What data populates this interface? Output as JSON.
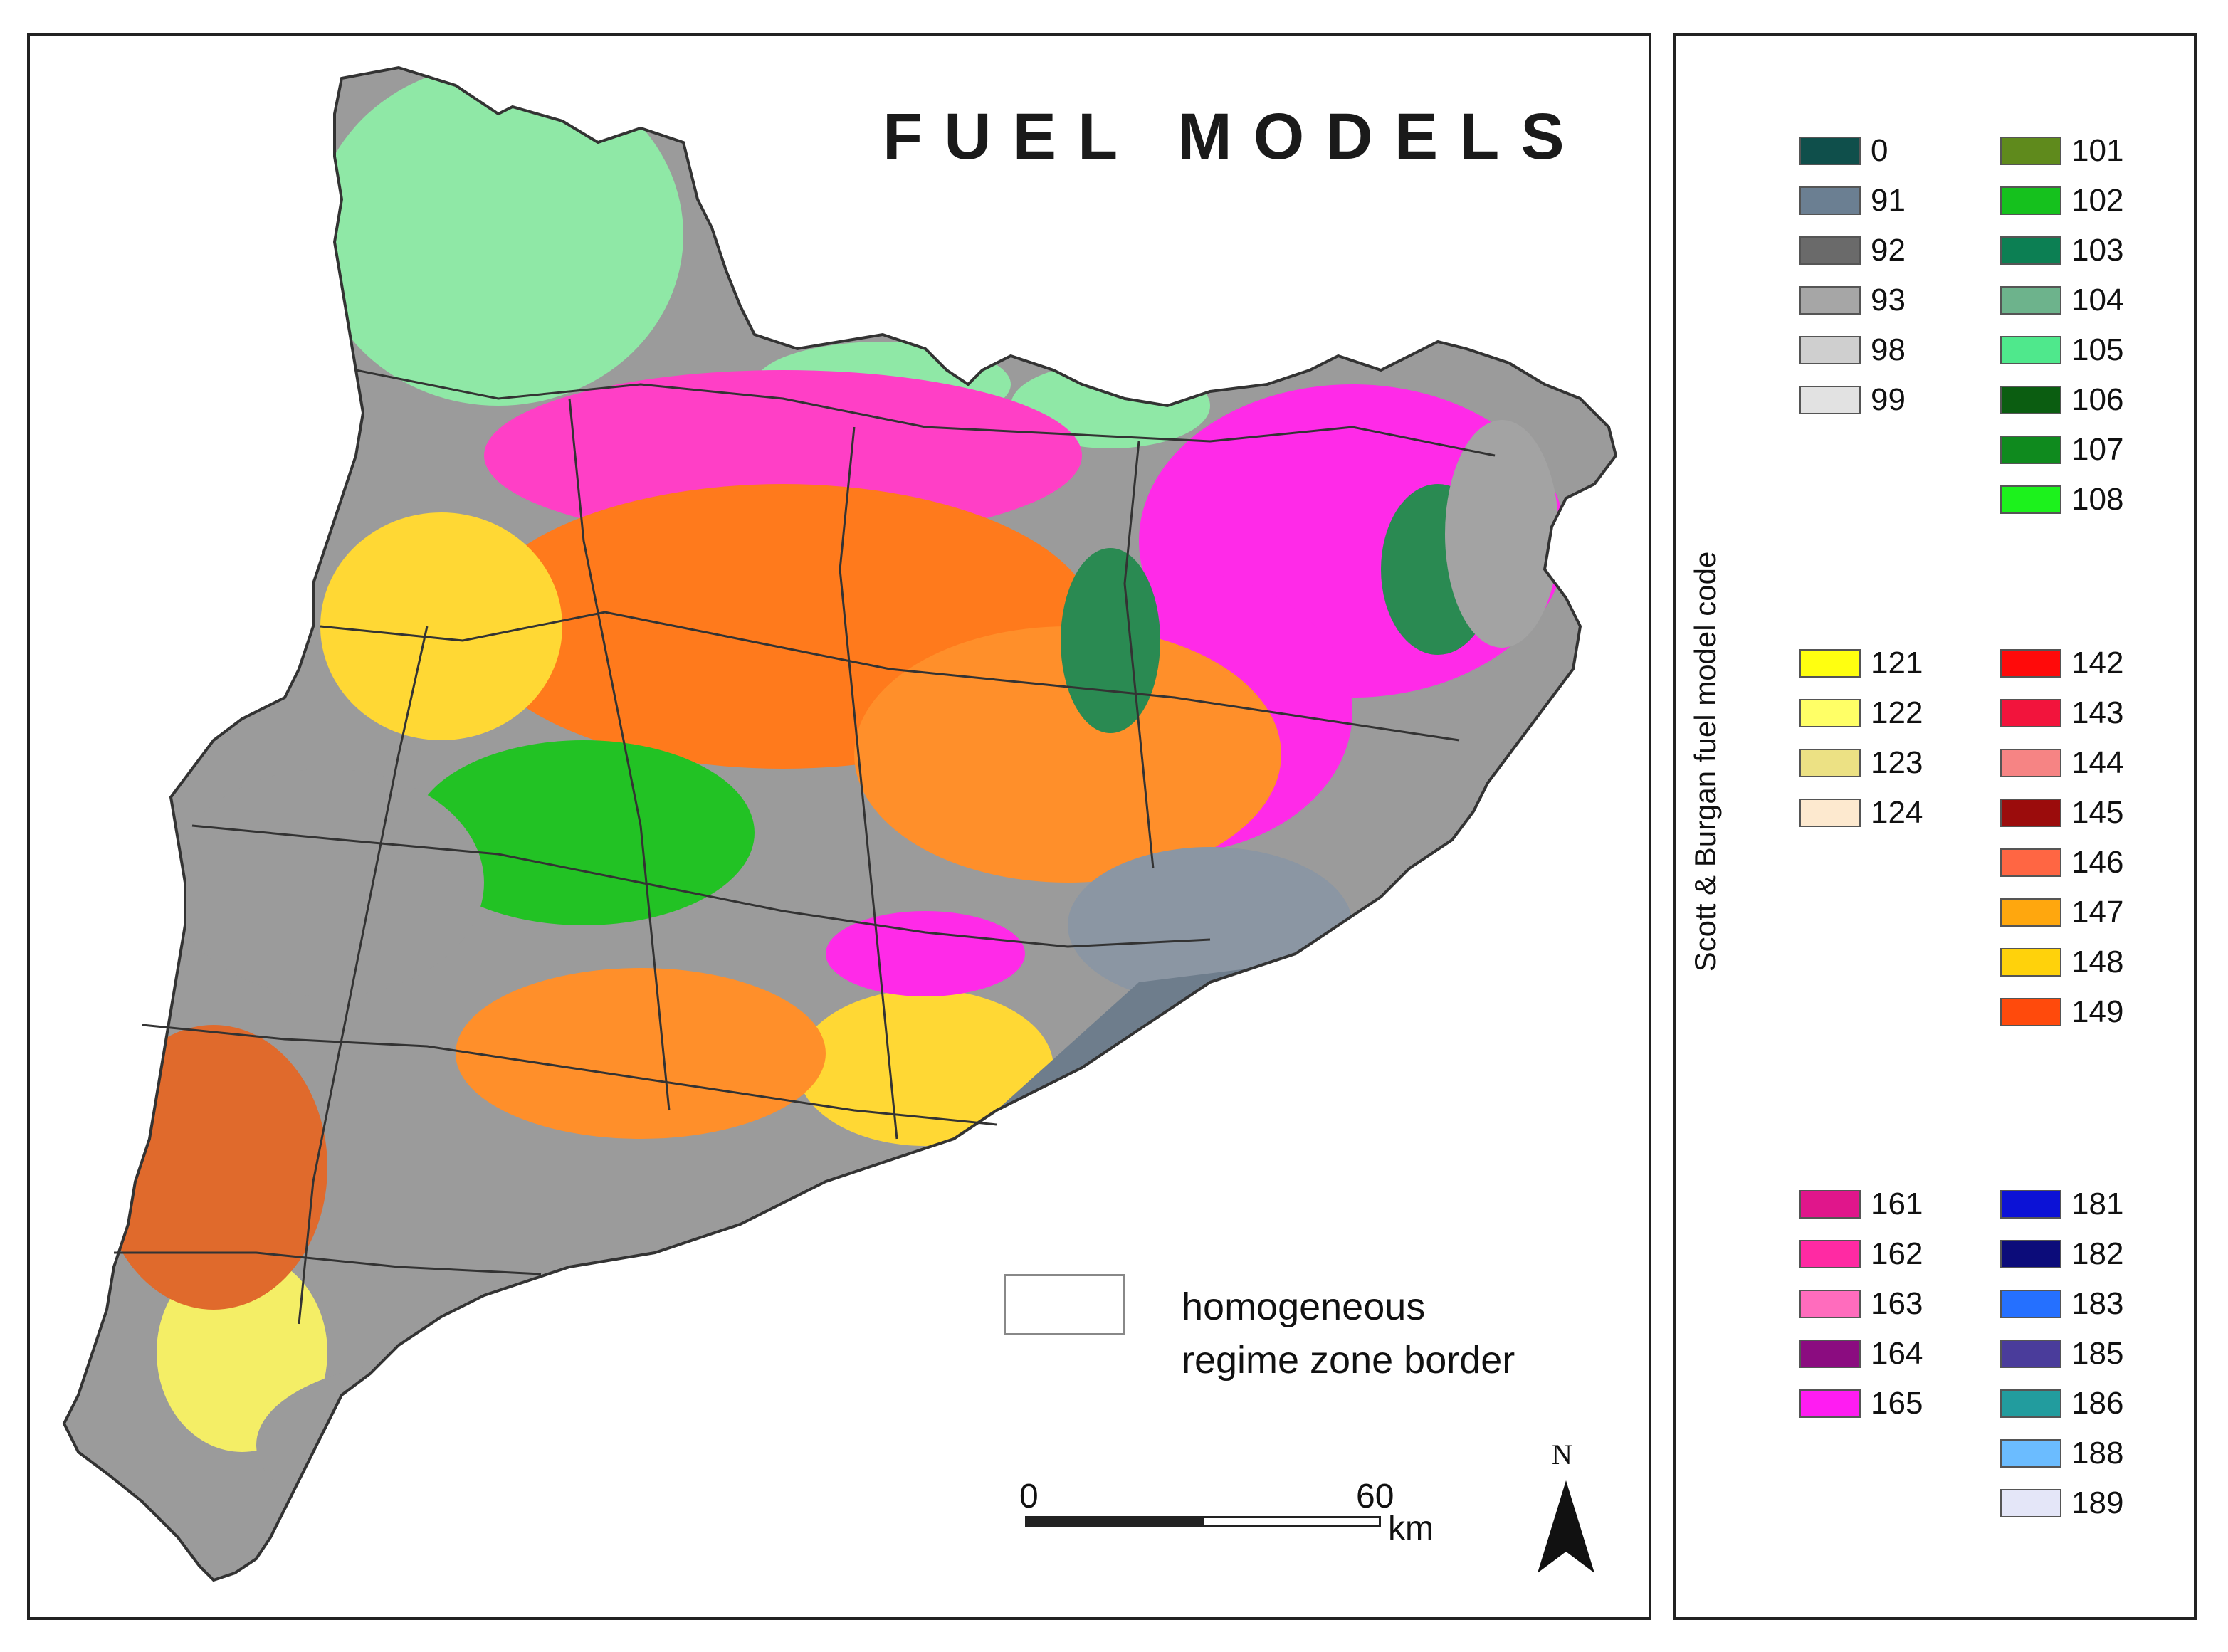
{
  "map": {
    "title": "FUEL MODELS",
    "zone_legend": {
      "line1": "homogeneous",
      "line2": "regime zone border"
    },
    "scale": {
      "start": "0",
      "end": "60",
      "unit": "km"
    },
    "north_label": "N"
  },
  "legend": {
    "axis_title": "Scott & Burgan fuel model code",
    "groups": [
      {
        "col": 0,
        "items": [
          {
            "code": "0",
            "color": "#0f4f4b"
          },
          {
            "code": "91",
            "color": "#6b7f92"
          },
          {
            "code": "92",
            "color": "#6a6a6a"
          },
          {
            "code": "93",
            "color": "#a6a6a6"
          },
          {
            "code": "98",
            "color": "#cfcfcf"
          },
          {
            "code": "99",
            "color": "#e2e2e2"
          }
        ]
      },
      {
        "col": 1,
        "items": [
          {
            "code": "101",
            "color": "#5f8a1c"
          },
          {
            "code": "102",
            "color": "#15c11d"
          },
          {
            "code": "103",
            "color": "#0c7f53"
          },
          {
            "code": "104",
            "color": "#6db38c"
          },
          {
            "code": "105",
            "color": "#4fe88c"
          },
          {
            "code": "106",
            "color": "#0b5d11"
          },
          {
            "code": "107",
            "color": "#0f8a1e"
          },
          {
            "code": "108",
            "color": "#1cf21c"
          }
        ]
      },
      {
        "col": 0,
        "items": [
          {
            "code": "121",
            "color": "#ffff10"
          },
          {
            "code": "122",
            "color": "#ffff66"
          },
          {
            "code": "123",
            "color": "#ece184"
          },
          {
            "code": "124",
            "color": "#fde9cf"
          }
        ]
      },
      {
        "col": 1,
        "items": [
          {
            "code": "142",
            "color": "#ff0a0a"
          },
          {
            "code": "143",
            "color": "#f2143c"
          },
          {
            "code": "144",
            "color": "#f68484"
          },
          {
            "code": "145",
            "color": "#9b0c0c"
          },
          {
            "code": "146",
            "color": "#ff6643"
          },
          {
            "code": "147",
            "color": "#ffa70e"
          },
          {
            "code": "148",
            "color": "#ffd20b"
          },
          {
            "code": "149",
            "color": "#ff4a0c"
          }
        ]
      },
      {
        "col": 0,
        "items": [
          {
            "code": "161",
            "color": "#e0168b"
          },
          {
            "code": "162",
            "color": "#ff2aa3"
          },
          {
            "code": "163",
            "color": "#ff6cbd"
          },
          {
            "code": "164",
            "color": "#8b0c80"
          },
          {
            "code": "165",
            "color": "#ff1cf2"
          }
        ]
      },
      {
        "col": 1,
        "items": [
          {
            "code": "181",
            "color": "#0c12d6"
          },
          {
            "code": "182",
            "color": "#0c0c7a"
          },
          {
            "code": "183",
            "color": "#2570ff"
          },
          {
            "code": "185",
            "color": "#4a3c9b"
          },
          {
            "code": "186",
            "color": "#229c9e"
          },
          {
            "code": "188",
            "color": "#6bbcff"
          },
          {
            "code": "189",
            "color": "#e4e6f8"
          }
        ]
      }
    ]
  },
  "colors": {
    "gray_plain": "#9b9b9b",
    "green": "#22c224",
    "magenta": "#ff2ae8",
    "orange": "#ff7a1c",
    "yellow": "#ffd834",
    "pale_green": "#8fe8a6",
    "dark_green": "#2a8a52",
    "blue_gray": "#6e7d8c",
    "border": "#333333"
  }
}
